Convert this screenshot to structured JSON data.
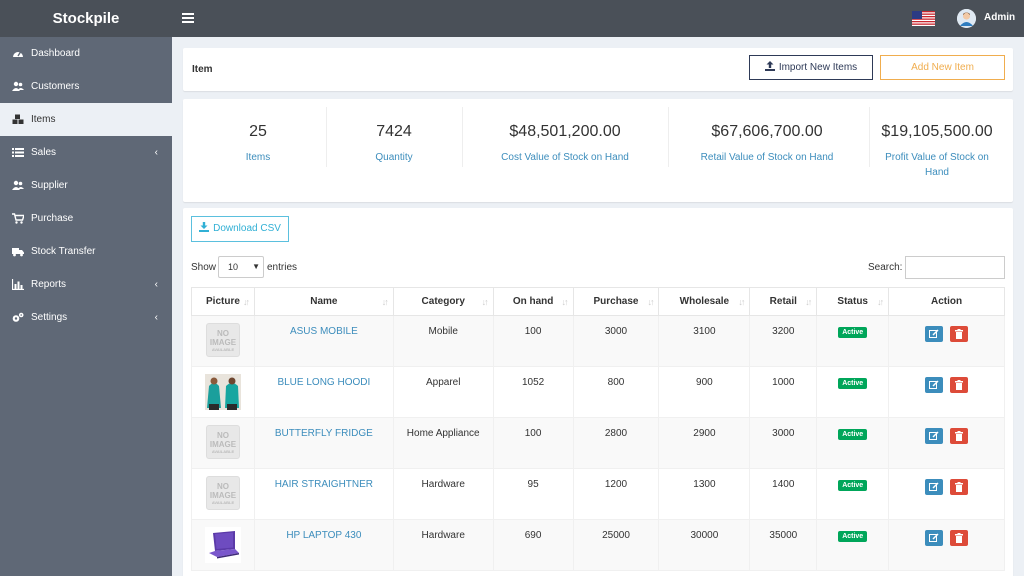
{
  "app": {
    "brand": "Stockpile",
    "user": "Admin"
  },
  "sidebar": {
    "items": [
      {
        "label": "Dashboard",
        "icon": "dashboard-icon",
        "chevron": false
      },
      {
        "label": "Customers",
        "icon": "users-icon",
        "chevron": false
      },
      {
        "label": "Items",
        "icon": "cubes-icon",
        "chevron": false,
        "active": true
      },
      {
        "label": "Sales",
        "icon": "list-icon",
        "chevron": true
      },
      {
        "label": "Supplier",
        "icon": "users-icon",
        "chevron": false
      },
      {
        "label": "Purchase",
        "icon": "cart-icon",
        "chevron": false
      },
      {
        "label": "Stock Transfer",
        "icon": "truck-icon",
        "chevron": false
      },
      {
        "label": "Reports",
        "icon": "bar-chart-icon",
        "chevron": true
      },
      {
        "label": "Settings",
        "icon": "gears-icon",
        "chevron": true
      }
    ],
    "chevron_glyph": "‹"
  },
  "header": {
    "title": "Item",
    "import_label": "Import New Items",
    "add_label": "Add New Item"
  },
  "stats": [
    {
      "value": "25",
      "label": "Items"
    },
    {
      "value": "7424",
      "label": "Quantity"
    },
    {
      "value": "$48,501,200.00",
      "label": "Cost Value of Stock on Hand"
    },
    {
      "value": "$67,606,700.00",
      "label": "Retail Value of Stock on Hand"
    },
    {
      "value": "$19,105,500.00",
      "label": "Profit Value of Stock on Hand"
    }
  ],
  "table_tools": {
    "download_label": "Download CSV",
    "show_label": "Show",
    "entries_value": "10",
    "entries_label": "entries",
    "search_label": "Search:",
    "search_value": ""
  },
  "table": {
    "columns": [
      "Picture",
      "Name",
      "Category",
      "On hand",
      "Purchase",
      "Wholesale",
      "Retail",
      "Status",
      "Action"
    ],
    "rows": [
      {
        "picture": "no-image",
        "name": "ASUS MOBILE",
        "category": "Mobile",
        "on_hand": "100",
        "purchase": "3000",
        "wholesale": "3100",
        "retail": "3200",
        "status": "Active"
      },
      {
        "picture": "hoodie-photo",
        "name": "BLUE LONG HOODI",
        "category": "Apparel",
        "on_hand": "1052",
        "purchase": "800",
        "wholesale": "900",
        "retail": "1000",
        "status": "Active"
      },
      {
        "picture": "no-image",
        "name": "BUTTERFLY FRIDGE",
        "category": "Home Appliance",
        "on_hand": "100",
        "purchase": "2800",
        "wholesale": "2900",
        "retail": "3000",
        "status": "Active"
      },
      {
        "picture": "no-image",
        "name": "HAIR STRAIGHTNER",
        "category": "Hardware",
        "on_hand": "95",
        "purchase": "1200",
        "wholesale": "1300",
        "retail": "1400",
        "status": "Active"
      },
      {
        "picture": "laptop-photo",
        "name": "HP LAPTOP 430",
        "category": "Hardware",
        "on_hand": "690",
        "purchase": "25000",
        "wholesale": "30000",
        "retail": "35000",
        "status": "Active"
      }
    ],
    "no_image_text": {
      "line1": "NO",
      "line2": "IMAGE",
      "line3": "AVAILABLE"
    }
  },
  "colors": {
    "topbar": "#4a5058",
    "sidebar": "#5f6876",
    "link": "#3c8dbc",
    "active_badge": "#00a65a",
    "edit_button": "#3c8dbc",
    "delete_button": "#dd4b39",
    "add_button": "#f0ad4e"
  }
}
